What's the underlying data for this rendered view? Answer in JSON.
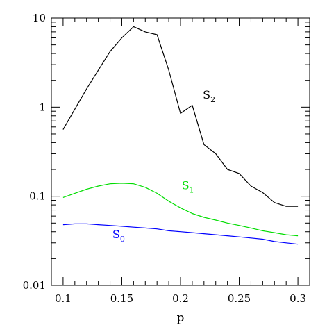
{
  "chart_data": {
    "type": "line",
    "xlabel": "p",
    "ylabel": "",
    "xlim": [
      0.09,
      0.31
    ],
    "ylim": [
      0.01,
      10
    ],
    "yscale": "log",
    "grid": false,
    "x_ticks": [
      "0.1",
      "0.15",
      "0.2",
      "0.25",
      "0.3"
    ],
    "y_ticks": [
      "0.01",
      "0.1",
      "1",
      "10"
    ],
    "series": [
      {
        "name": "S2",
        "label_main": "S",
        "label_sub": "2",
        "color": "#000000",
        "x": [
          0.1,
          0.11,
          0.12,
          0.13,
          0.14,
          0.15,
          0.16,
          0.17,
          0.18,
          0.19,
          0.2,
          0.21,
          0.22,
          0.23,
          0.24,
          0.25,
          0.26,
          0.27,
          0.28,
          0.29,
          0.3
        ],
        "y": [
          0.56,
          0.95,
          1.6,
          2.6,
          4.2,
          6.0,
          8.0,
          7.0,
          6.5,
          2.6,
          0.85,
          1.05,
          0.38,
          0.3,
          0.2,
          0.18,
          0.13,
          0.11,
          0.085,
          0.077,
          0.077
        ]
      },
      {
        "name": "S1",
        "label_main": "S",
        "label_sub": "1",
        "color": "#00dd00",
        "x": [
          0.1,
          0.11,
          0.12,
          0.13,
          0.14,
          0.15,
          0.16,
          0.17,
          0.18,
          0.19,
          0.2,
          0.21,
          0.22,
          0.23,
          0.24,
          0.25,
          0.26,
          0.27,
          0.28,
          0.29,
          0.3
        ],
        "y": [
          0.097,
          0.108,
          0.12,
          0.13,
          0.138,
          0.14,
          0.138,
          0.126,
          0.108,
          0.088,
          0.074,
          0.064,
          0.058,
          0.054,
          0.05,
          0.047,
          0.044,
          0.041,
          0.039,
          0.037,
          0.036
        ]
      },
      {
        "name": "S0",
        "label_main": "S",
        "label_sub": "0",
        "color": "#0000ff",
        "x": [
          0.1,
          0.11,
          0.12,
          0.13,
          0.14,
          0.15,
          0.16,
          0.17,
          0.18,
          0.19,
          0.2,
          0.21,
          0.22,
          0.23,
          0.24,
          0.25,
          0.26,
          0.27,
          0.28,
          0.29,
          0.3
        ],
        "y": [
          0.048,
          0.049,
          0.049,
          0.048,
          0.047,
          0.046,
          0.045,
          0.044,
          0.043,
          0.041,
          0.04,
          0.039,
          0.038,
          0.037,
          0.036,
          0.035,
          0.034,
          0.033,
          0.031,
          0.03,
          0.029
        ]
      }
    ]
  }
}
